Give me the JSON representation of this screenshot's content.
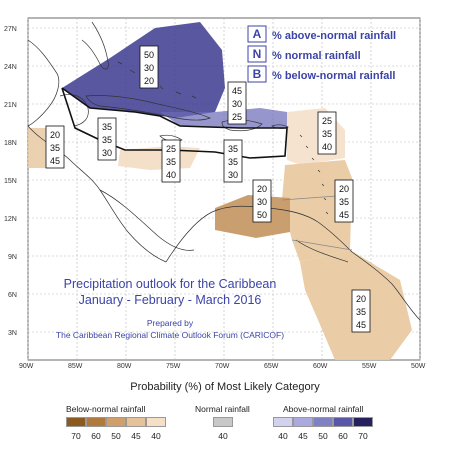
{
  "map": {
    "title_line1": "Precipitation outlook for the Caribbean",
    "title_line2": "January - February - March 2016",
    "prepared_by": "Prepared by",
    "forum": "The Caribbean Regional Climate Outlook Forum (CARICOF)",
    "lat_labels": [
      "27N",
      "24N",
      "21N",
      "18N",
      "15N",
      "12N",
      "9N",
      "6N",
      "3N"
    ],
    "lon_labels": [
      "90W",
      "85W",
      "80W",
      "75W",
      "70W",
      "65W",
      "60W",
      "55W",
      "50W"
    ],
    "key": [
      {
        "code": "A",
        "text": "% above-normal rainfall"
      },
      {
        "code": "N",
        "text": "% normal rainfall"
      },
      {
        "code": "B",
        "text": "% below-normal rainfall"
      }
    ],
    "prob_boxes": [
      {
        "name": "bahamas",
        "values": [
          "50",
          "30",
          "20"
        ]
      },
      {
        "name": "greater-antilles-east",
        "values": [
          "45",
          "30",
          "25"
        ]
      },
      {
        "name": "cuba-central",
        "values": [
          "35",
          "35",
          "30"
        ]
      },
      {
        "name": "belize",
        "values": [
          "20",
          "35",
          "45"
        ]
      },
      {
        "name": "jamaica",
        "values": [
          "25",
          "35",
          "40"
        ]
      },
      {
        "name": "hispaniola",
        "values": [
          "35",
          "35",
          "30"
        ]
      },
      {
        "name": "leeward-islands",
        "values": [
          "25",
          "35",
          "40"
        ]
      },
      {
        "name": "abc-islands",
        "values": [
          "20",
          "30",
          "50"
        ]
      },
      {
        "name": "windward-islands",
        "values": [
          "20",
          "35",
          "45"
        ]
      },
      {
        "name": "guianas",
        "values": [
          "20",
          "35",
          "45"
        ]
      }
    ]
  },
  "legend": {
    "heading": "Probability (%) of Most Likely Category",
    "below": {
      "title": "Below-normal rainfall",
      "values": [
        "70",
        "60",
        "50",
        "45",
        "40"
      ],
      "colors": [
        "#8b5a1f",
        "#b07a3c",
        "#cf9f6c",
        "#e6c29b",
        "#f5dfc6"
      ]
    },
    "normal": {
      "title": "Normal rainfall",
      "values": [
        "40"
      ],
      "colors": [
        "#c8c8c8"
      ]
    },
    "above": {
      "title": "Above-normal rainfall",
      "values": [
        "40",
        "45",
        "50",
        "60",
        "70"
      ],
      "colors": [
        "#d2d2ee",
        "#aaaade",
        "#8080c4",
        "#5a57a8",
        "#25205e"
      ]
    }
  }
}
